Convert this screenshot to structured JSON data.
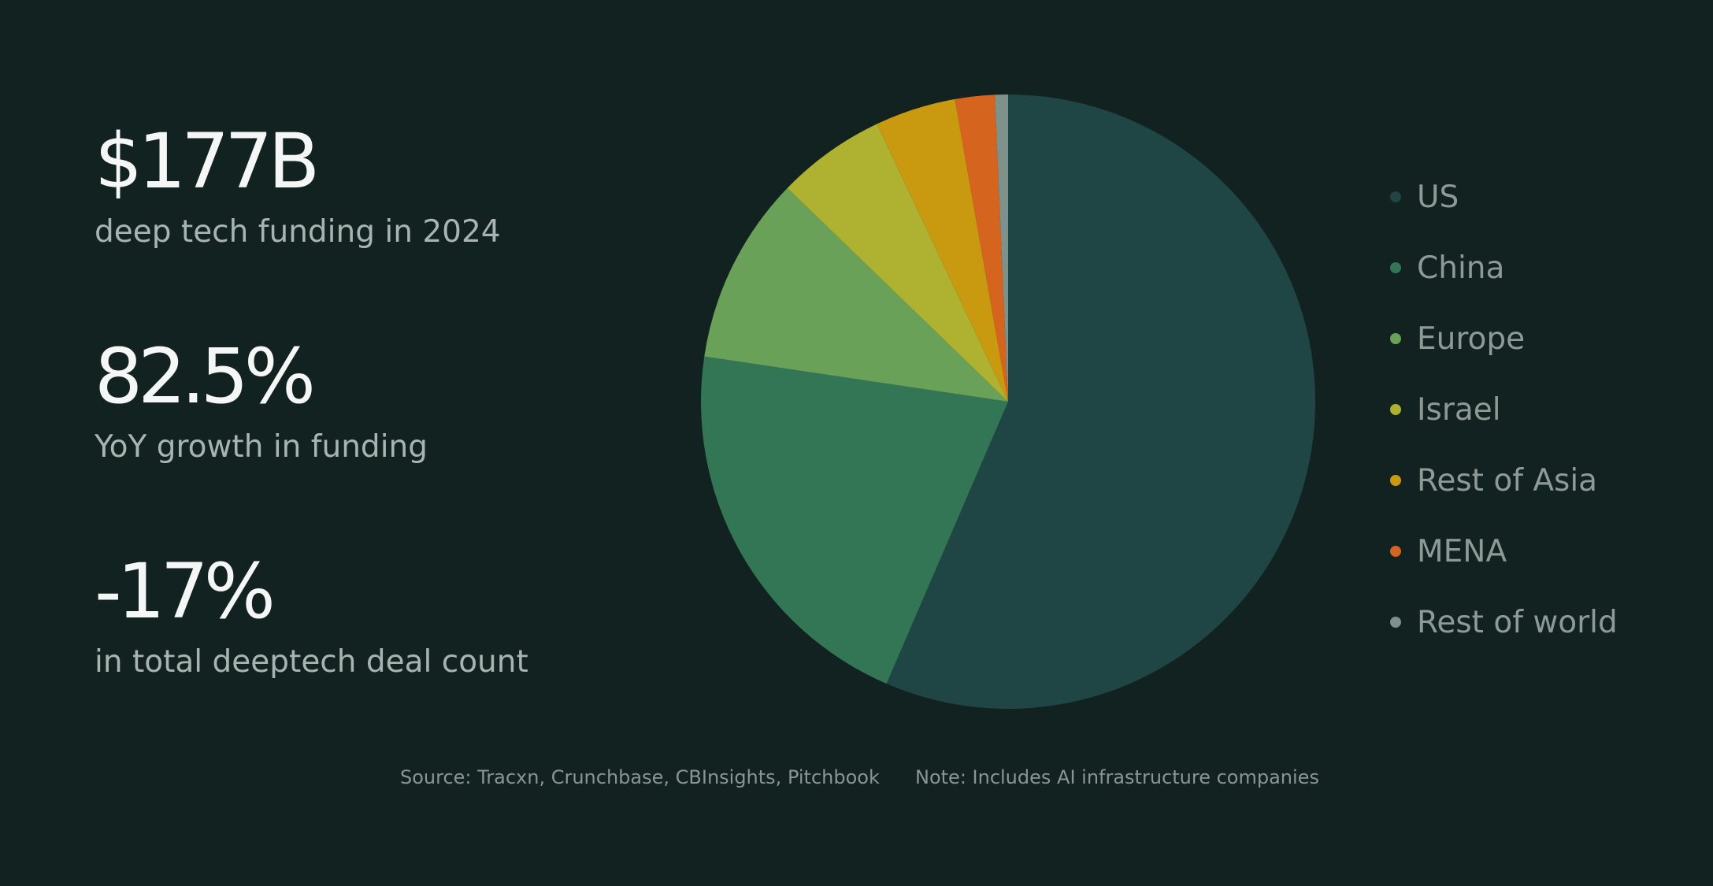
{
  "stats": [
    {
      "value": "$177B",
      "label": "deep tech funding in 2024"
    },
    {
      "value": "82.5%",
      "label": "YoY growth in funding"
    },
    {
      "value": "-17%",
      "label": "in total deeptech deal count"
    }
  ],
  "chart_data": {
    "type": "pie",
    "title": "",
    "legend_position": "right",
    "slices": [
      {
        "name": "US",
        "value": 57.1,
        "color": "#1f4644"
      },
      {
        "name": "China",
        "value": 21.1,
        "color": "#337656"
      },
      {
        "name": "Europe",
        "value": 10.0,
        "color": "#6aa158"
      },
      {
        "name": "Israel",
        "value": 5.8,
        "color": "#aeb230"
      },
      {
        "name": "Rest of Asia",
        "value": 4.3,
        "color": "#c99a10"
      },
      {
        "name": "MENA",
        "value": 2.1,
        "color": "#d4641e"
      },
      {
        "name": "Rest of world",
        "value": 0.7,
        "color": "#7f918b"
      }
    ]
  },
  "footnotes": {
    "source": "Source: Tracxn, Crunchbase, CBInsights, Pitchbook",
    "note": "Note: Includes AI infrastructure companies"
  }
}
